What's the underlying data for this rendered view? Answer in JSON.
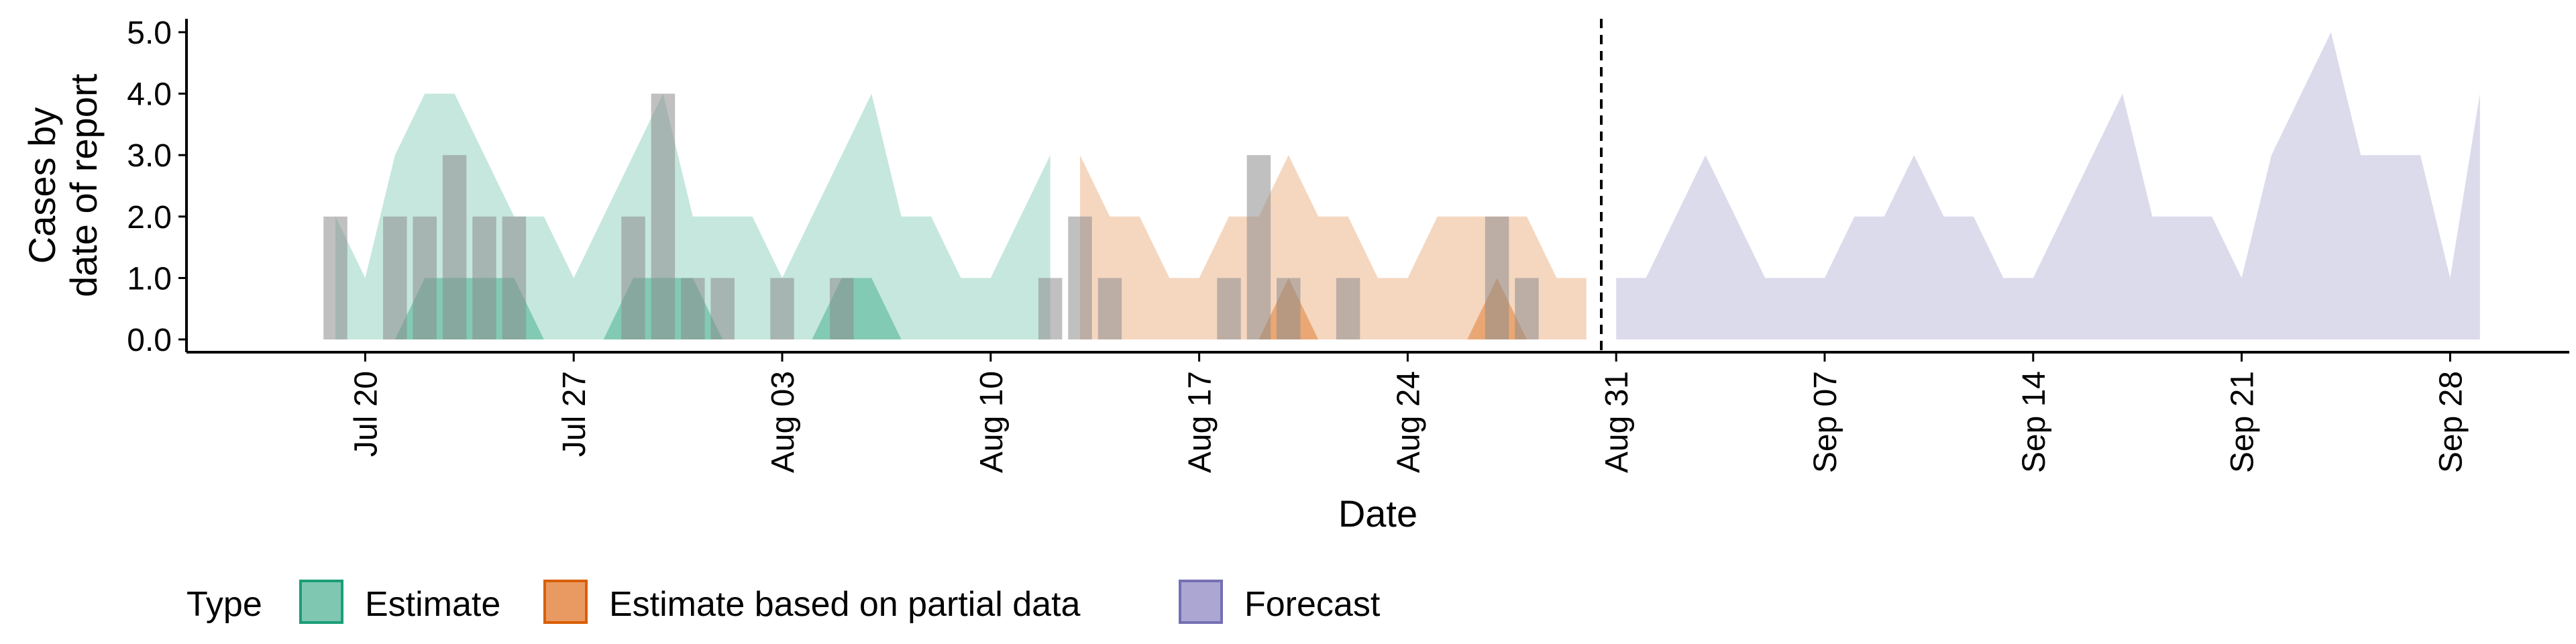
{
  "chart_data": {
    "type": "area",
    "xlabel": "Date",
    "ylabel": [
      "Cases by",
      "date of report"
    ],
    "x_range": [
      "2020-07-14",
      "2020-10-02"
    ],
    "ylim": [
      0,
      5
    ],
    "y_ticks": [
      "0.0",
      "1.0",
      "2.0",
      "3.0",
      "4.0",
      "5.0"
    ],
    "x_ticks": [
      {
        "date": "2020-07-20",
        "label": "Jul 20"
      },
      {
        "date": "2020-07-27",
        "label": "Jul 27"
      },
      {
        "date": "2020-08-03",
        "label": "Aug 03"
      },
      {
        "date": "2020-08-10",
        "label": "Aug 10"
      },
      {
        "date": "2020-08-17",
        "label": "Aug 17"
      },
      {
        "date": "2020-08-24",
        "label": "Aug 24"
      },
      {
        "date": "2020-08-31",
        "label": "Aug 31"
      },
      {
        "date": "2020-09-07",
        "label": "Sep 07"
      },
      {
        "date": "2020-09-14",
        "label": "Sep 14"
      },
      {
        "date": "2020-09-21",
        "label": "Sep 21"
      },
      {
        "date": "2020-09-28",
        "label": "Sep 28"
      }
    ],
    "vline_date": "2020-08-30",
    "legend": {
      "title": "Type",
      "position": "bottom",
      "entries": [
        {
          "label": "Estimate",
          "fill": "#7FC7B1",
          "stroke": "#1B9E77"
        },
        {
          "label": "Estimate based on partial data",
          "fill": "#E99A63",
          "stroke": "#D95F02"
        },
        {
          "label": "Forecast",
          "fill": "#ABA7D2",
          "stroke": "#7570B3"
        }
      ]
    },
    "series": [
      {
        "name": "Estimate",
        "color": "#1B9E77",
        "x": [
          "2020-07-19",
          "2020-07-20",
          "2020-07-21",
          "2020-07-22",
          "2020-07-23",
          "2020-07-24",
          "2020-07-25",
          "2020-07-26",
          "2020-07-27",
          "2020-07-28",
          "2020-07-29",
          "2020-07-30",
          "2020-07-31",
          "2020-08-01",
          "2020-08-02",
          "2020-08-03",
          "2020-08-04",
          "2020-08-05",
          "2020-08-06",
          "2020-08-07",
          "2020-08-08",
          "2020-08-09",
          "2020-08-10",
          "2020-08-11",
          "2020-08-12"
        ],
        "lower": [
          0,
          0,
          0,
          1,
          1,
          1,
          1,
          0,
          0,
          0,
          1,
          1,
          1,
          0,
          0,
          0,
          0,
          1,
          1,
          0,
          0,
          0,
          0,
          0,
          0
        ],
        "upper": [
          2,
          1,
          3,
          4,
          4,
          3,
          2,
          2,
          1,
          2,
          3,
          4,
          2,
          2,
          2,
          1,
          2,
          3,
          4,
          2,
          2,
          1,
          1,
          2,
          3
        ]
      },
      {
        "name": "Estimate based on partial data",
        "color": "#D95F02",
        "x": [
          "2020-08-13",
          "2020-08-14",
          "2020-08-15",
          "2020-08-16",
          "2020-08-17",
          "2020-08-18",
          "2020-08-19",
          "2020-08-20",
          "2020-08-21",
          "2020-08-22",
          "2020-08-23",
          "2020-08-24",
          "2020-08-25",
          "2020-08-26",
          "2020-08-27",
          "2020-08-28",
          "2020-08-29",
          "2020-08-30"
        ],
        "lower": [
          0,
          0,
          0,
          0,
          0,
          0,
          0,
          1,
          0,
          0,
          0,
          0,
          0,
          0,
          1,
          0,
          0,
          0
        ],
        "upper": [
          3,
          2,
          2,
          1,
          1,
          2,
          2,
          3,
          2,
          2,
          1,
          1,
          2,
          2,
          2,
          2,
          1,
          1
        ]
      },
      {
        "name": "Forecast",
        "color": "#7570B3",
        "x": [
          "2020-08-31",
          "2020-09-01",
          "2020-09-02",
          "2020-09-03",
          "2020-09-04",
          "2020-09-05",
          "2020-09-06",
          "2020-09-07",
          "2020-09-08",
          "2020-09-09",
          "2020-09-10",
          "2020-09-11",
          "2020-09-12",
          "2020-09-13",
          "2020-09-14",
          "2020-09-15",
          "2020-09-16",
          "2020-09-17",
          "2020-09-18",
          "2020-09-19",
          "2020-09-20",
          "2020-09-21",
          "2020-09-22",
          "2020-09-23",
          "2020-09-24",
          "2020-09-25",
          "2020-09-26",
          "2020-09-27",
          "2020-09-28",
          "2020-09-29"
        ],
        "lower": [
          0,
          0,
          0,
          0,
          0,
          0,
          0,
          0,
          0,
          0,
          0,
          0,
          0,
          0,
          0,
          0,
          0,
          0,
          0,
          0,
          0,
          0,
          0,
          0,
          0,
          0,
          0,
          0,
          0,
          0
        ],
        "upper": [
          1,
          1,
          2,
          3,
          2,
          1,
          1,
          1,
          2,
          2,
          3,
          2,
          2,
          1,
          1,
          2,
          3,
          4,
          2,
          2,
          2,
          1,
          3,
          4,
          5,
          3,
          3,
          3,
          1,
          4
        ]
      }
    ],
    "reported_cases": {
      "color": "#8C8C8C",
      "x": [
        "2020-07-19",
        "2020-07-21",
        "2020-07-22",
        "2020-07-23",
        "2020-07-24",
        "2020-07-25",
        "2020-07-29",
        "2020-07-30",
        "2020-07-31",
        "2020-08-01",
        "2020-08-03",
        "2020-08-05",
        "2020-08-12",
        "2020-08-13",
        "2020-08-14",
        "2020-08-18",
        "2020-08-19",
        "2020-08-20",
        "2020-08-22",
        "2020-08-27",
        "2020-08-28"
      ],
      "values": [
        2,
        2,
        2,
        3,
        2,
        2,
        2,
        4,
        1,
        1,
        1,
        1,
        1,
        2,
        1,
        1,
        3,
        1,
        1,
        2,
        1
      ]
    }
  }
}
